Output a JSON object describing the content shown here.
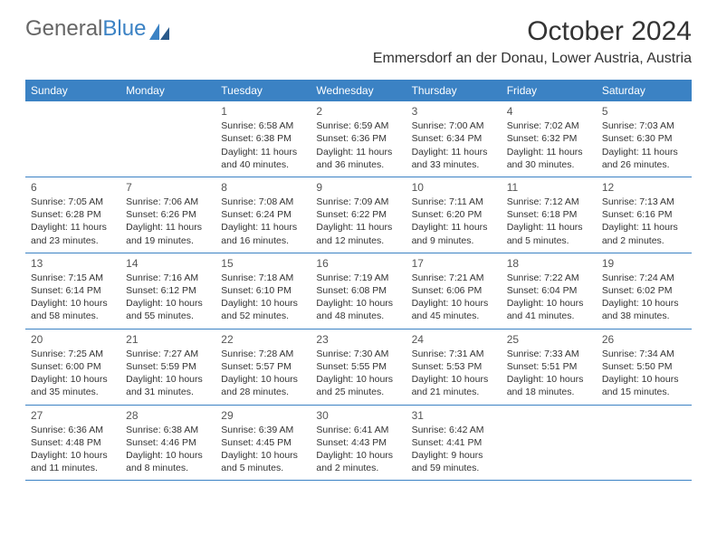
{
  "logo": {
    "text_gray": "General",
    "text_blue": "Blue"
  },
  "title": "October 2024",
  "location": "Emmersdorf an der Donau, Lower Austria, Austria",
  "colors": {
    "header_bg": "#3b82c4",
    "header_text": "#ffffff",
    "body_text": "#333333",
    "divider": "#3b82c4"
  },
  "weekdays": [
    "Sunday",
    "Monday",
    "Tuesday",
    "Wednesday",
    "Thursday",
    "Friday",
    "Saturday"
  ],
  "weeks": [
    [
      null,
      null,
      {
        "n": "1",
        "sr": "6:58 AM",
        "ss": "6:38 PM",
        "dl": "11 hours and 40 minutes."
      },
      {
        "n": "2",
        "sr": "6:59 AM",
        "ss": "6:36 PM",
        "dl": "11 hours and 36 minutes."
      },
      {
        "n": "3",
        "sr": "7:00 AM",
        "ss": "6:34 PM",
        "dl": "11 hours and 33 minutes."
      },
      {
        "n": "4",
        "sr": "7:02 AM",
        "ss": "6:32 PM",
        "dl": "11 hours and 30 minutes."
      },
      {
        "n": "5",
        "sr": "7:03 AM",
        "ss": "6:30 PM",
        "dl": "11 hours and 26 minutes."
      }
    ],
    [
      {
        "n": "6",
        "sr": "7:05 AM",
        "ss": "6:28 PM",
        "dl": "11 hours and 23 minutes."
      },
      {
        "n": "7",
        "sr": "7:06 AM",
        "ss": "6:26 PM",
        "dl": "11 hours and 19 minutes."
      },
      {
        "n": "8",
        "sr": "7:08 AM",
        "ss": "6:24 PM",
        "dl": "11 hours and 16 minutes."
      },
      {
        "n": "9",
        "sr": "7:09 AM",
        "ss": "6:22 PM",
        "dl": "11 hours and 12 minutes."
      },
      {
        "n": "10",
        "sr": "7:11 AM",
        "ss": "6:20 PM",
        "dl": "11 hours and 9 minutes."
      },
      {
        "n": "11",
        "sr": "7:12 AM",
        "ss": "6:18 PM",
        "dl": "11 hours and 5 minutes."
      },
      {
        "n": "12",
        "sr": "7:13 AM",
        "ss": "6:16 PM",
        "dl": "11 hours and 2 minutes."
      }
    ],
    [
      {
        "n": "13",
        "sr": "7:15 AM",
        "ss": "6:14 PM",
        "dl": "10 hours and 58 minutes."
      },
      {
        "n": "14",
        "sr": "7:16 AM",
        "ss": "6:12 PM",
        "dl": "10 hours and 55 minutes."
      },
      {
        "n": "15",
        "sr": "7:18 AM",
        "ss": "6:10 PM",
        "dl": "10 hours and 52 minutes."
      },
      {
        "n": "16",
        "sr": "7:19 AM",
        "ss": "6:08 PM",
        "dl": "10 hours and 48 minutes."
      },
      {
        "n": "17",
        "sr": "7:21 AM",
        "ss": "6:06 PM",
        "dl": "10 hours and 45 minutes."
      },
      {
        "n": "18",
        "sr": "7:22 AM",
        "ss": "6:04 PM",
        "dl": "10 hours and 41 minutes."
      },
      {
        "n": "19",
        "sr": "7:24 AM",
        "ss": "6:02 PM",
        "dl": "10 hours and 38 minutes."
      }
    ],
    [
      {
        "n": "20",
        "sr": "7:25 AM",
        "ss": "6:00 PM",
        "dl": "10 hours and 35 minutes."
      },
      {
        "n": "21",
        "sr": "7:27 AM",
        "ss": "5:59 PM",
        "dl": "10 hours and 31 minutes."
      },
      {
        "n": "22",
        "sr": "7:28 AM",
        "ss": "5:57 PM",
        "dl": "10 hours and 28 minutes."
      },
      {
        "n": "23",
        "sr": "7:30 AM",
        "ss": "5:55 PM",
        "dl": "10 hours and 25 minutes."
      },
      {
        "n": "24",
        "sr": "7:31 AM",
        "ss": "5:53 PM",
        "dl": "10 hours and 21 minutes."
      },
      {
        "n": "25",
        "sr": "7:33 AM",
        "ss": "5:51 PM",
        "dl": "10 hours and 18 minutes."
      },
      {
        "n": "26",
        "sr": "7:34 AM",
        "ss": "5:50 PM",
        "dl": "10 hours and 15 minutes."
      }
    ],
    [
      {
        "n": "27",
        "sr": "6:36 AM",
        "ss": "4:48 PM",
        "dl": "10 hours and 11 minutes."
      },
      {
        "n": "28",
        "sr": "6:38 AM",
        "ss": "4:46 PM",
        "dl": "10 hours and 8 minutes."
      },
      {
        "n": "29",
        "sr": "6:39 AM",
        "ss": "4:45 PM",
        "dl": "10 hours and 5 minutes."
      },
      {
        "n": "30",
        "sr": "6:41 AM",
        "ss": "4:43 PM",
        "dl": "10 hours and 2 minutes."
      },
      {
        "n": "31",
        "sr": "6:42 AM",
        "ss": "4:41 PM",
        "dl": "9 hours and 59 minutes."
      },
      null,
      null
    ]
  ],
  "labels": {
    "sunrise": "Sunrise:",
    "sunset": "Sunset:",
    "daylight": "Daylight:"
  }
}
